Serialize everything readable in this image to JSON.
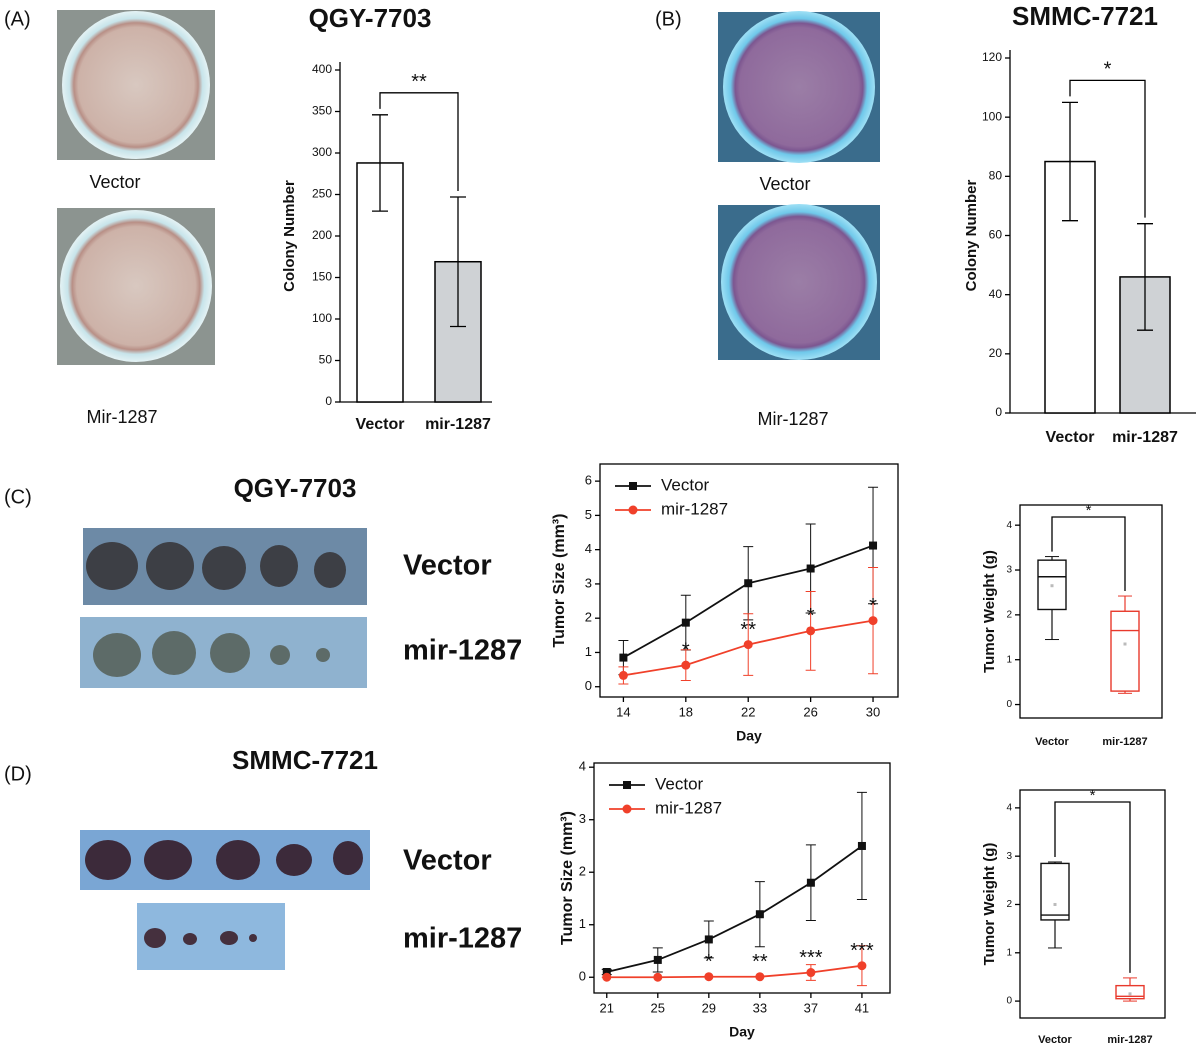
{
  "figure": {
    "panel_labels": [
      "(A)",
      "(B)",
      "(C)",
      "(D)"
    ],
    "photo_labels": [
      "Vector",
      "Mir-1287",
      "Vector",
      "Mir-1287"
    ],
    "tumor_titles": [
      "QGY-7703",
      "SMMC-7721"
    ],
    "tumor_labels": [
      "Vector",
      "mir-1287",
      "Vector",
      "mir-1287"
    ]
  },
  "chart_data": [
    {
      "type": "bar",
      "title": "QGY-7703",
      "y_label": "Colony Number",
      "categories": [
        "Vector",
        "mir-1287"
      ],
      "values": [
        288,
        169
      ],
      "errors": [
        58,
        78
      ],
      "colors": [
        "#ffffff",
        "#cfd2d5"
      ],
      "ylim": [
        0,
        400
      ],
      "yticks": [
        0,
        50,
        100,
        150,
        200,
        250,
        300,
        350,
        400
      ],
      "significance": "**"
    },
    {
      "type": "bar",
      "title": "SMMC-7721",
      "y_label": "Colony Number",
      "categories": [
        "Vector",
        "mir-1287"
      ],
      "values": [
        85,
        46
      ],
      "errors": [
        20,
        18
      ],
      "colors": [
        "#ffffff",
        "#cfd2d5"
      ],
      "ylim": [
        0,
        120
      ],
      "yticks": [
        0,
        20,
        40,
        60,
        80,
        100,
        120
      ],
      "significance": "*"
    },
    {
      "type": "line",
      "x_label": "Day",
      "y_label": "Tumor Size (mm³)",
      "x": [
        14,
        18,
        22,
        26,
        30
      ],
      "series": [
        {
          "name": "Vector",
          "color": "#111111",
          "marker": "square",
          "values": [
            0.85,
            1.87,
            3.02,
            3.45,
            4.12
          ],
          "errors": [
            0.5,
            0.8,
            1.07,
            1.3,
            1.7
          ]
        },
        {
          "name": "mir-1287",
          "color": "#f0402a",
          "marker": "circle",
          "values": [
            0.33,
            0.63,
            1.23,
            1.63,
            1.93
          ],
          "errors": [
            0.25,
            0.45,
            0.9,
            1.15,
            1.55
          ]
        }
      ],
      "annotations": [
        null,
        "*",
        "**",
        "*",
        "*"
      ],
      "xlim": [
        12.5,
        31.6
      ],
      "xticks": [
        14,
        18,
        22,
        26,
        30
      ],
      "ylim": [
        -0.3,
        6.5
      ],
      "yticks": [
        0,
        1,
        2,
        3,
        4,
        5,
        6
      ],
      "legend": "upper left"
    },
    {
      "type": "box",
      "y_label": "Tumor Weight (g)",
      "boxes": [
        {
          "name": "Vector",
          "color": "#111111",
          "min": 1.45,
          "q1": 2.12,
          "median": 2.85,
          "q3": 3.22,
          "max": 3.3,
          "mean": 2.65
        },
        {
          "name": "mir-1287",
          "color": "#e8392c",
          "min": 0.25,
          "q1": 0.3,
          "median": 1.65,
          "q3": 2.08,
          "max": 2.42,
          "mean": 1.35
        }
      ],
      "ylim": [
        -0.3,
        4.45
      ],
      "yticks": [
        0,
        1,
        2,
        3,
        4
      ],
      "significance": "*"
    },
    {
      "type": "line",
      "x_label": "Day",
      "y_label": "Tumor Size (mm³)",
      "x": [
        21,
        25,
        29,
        33,
        37,
        41
      ],
      "series": [
        {
          "name": "Vector",
          "color": "#111111",
          "marker": "square",
          "values": [
            0.1,
            0.33,
            0.72,
            1.2,
            1.8,
            2.5
          ],
          "errors": [
            0.05,
            0.23,
            0.35,
            0.62,
            0.72,
            1.02
          ]
        },
        {
          "name": "mir-1287",
          "color": "#f0402a",
          "marker": "circle",
          "values": [
            0,
            0,
            0.01,
            0.01,
            0.09,
            0.22
          ],
          "errors": [
            0,
            0,
            0,
            0,
            0.15,
            0.38
          ]
        }
      ],
      "annotations": [
        null,
        null,
        "*",
        "**",
        "***",
        "***"
      ],
      "xlim": [
        20,
        43.2
      ],
      "xticks": [
        21,
        25,
        29,
        33,
        37,
        41
      ],
      "ylim": [
        -0.3,
        4.08
      ],
      "yticks": [
        0,
        1,
        2,
        3,
        4
      ],
      "legend": "upper left"
    },
    {
      "type": "box",
      "y_label": "Tumor Weight (g)",
      "boxes": [
        {
          "name": "Vector",
          "color": "#111111",
          "min": 1.1,
          "q1": 1.68,
          "median": 1.78,
          "q3": 2.85,
          "max": 2.88,
          "mean": 2.0
        },
        {
          "name": "mir-1287",
          "color": "#e8392c",
          "min": 0.0,
          "q1": 0.05,
          "median": 0.1,
          "q3": 0.32,
          "max": 0.48,
          "mean": 0.15
        }
      ],
      "ylim": [
        -0.35,
        4.37
      ],
      "yticks": [
        0,
        1,
        2,
        3,
        4
      ],
      "significance": "*"
    }
  ]
}
